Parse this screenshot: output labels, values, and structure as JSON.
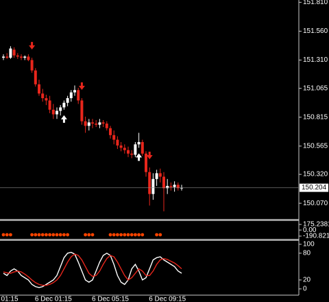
{
  "chart_data": [
    {
      "type": "candlestick",
      "categories": [
        "01:15",
        null,
        null,
        null,
        null,
        null,
        null,
        null,
        null,
        null,
        null,
        null,
        null,
        null,
        "6 Dec 01:15",
        null,
        null,
        null,
        null,
        null,
        null,
        null,
        null,
        null,
        null,
        null,
        null,
        null,
        null,
        null,
        "6 Dec 05:15",
        null,
        null,
        null,
        null,
        null,
        null,
        null,
        null,
        null,
        null,
        null,
        null,
        null,
        null,
        null,
        "6 Dec 09:15",
        null,
        null,
        null,
        null
      ],
      "open": [
        151.33,
        151.34,
        151.33,
        151.4,
        151.35,
        151.34,
        151.33,
        151.34,
        151.31,
        151.22,
        151.1,
        151.02,
        150.98,
        150.96,
        150.88,
        150.84,
        150.87,
        150.9,
        150.94,
        150.98,
        151.03,
        151.05,
        150.96,
        150.78,
        150.74,
        150.77,
        150.76,
        150.75,
        150.77,
        150.76,
        150.72,
        150.66,
        150.62,
        150.57,
        150.55,
        150.53,
        150.5,
        150.49,
        150.58,
        150.6,
        150.5,
        150.34,
        150.15,
        150.28,
        150.33,
        150.3,
        150.2,
        150.22,
        150.21,
        150.23,
        150.2
      ],
      "high": [
        151.36,
        151.37,
        151.43,
        151.42,
        151.37,
        151.36,
        151.35,
        151.36,
        151.33,
        151.24,
        151.14,
        151.06,
        151.01,
        151.0,
        150.93,
        150.9,
        150.92,
        150.96,
        151.0,
        151.05,
        151.09,
        151.07,
        150.98,
        150.82,
        150.8,
        150.8,
        150.79,
        150.8,
        150.79,
        150.78,
        150.74,
        150.7,
        150.65,
        150.6,
        150.58,
        150.56,
        150.53,
        150.6,
        150.68,
        150.62,
        150.52,
        150.38,
        150.33,
        150.36,
        150.37,
        150.34,
        150.28,
        150.25,
        150.26,
        150.25,
        150.23
      ],
      "low": [
        151.31,
        151.32,
        151.32,
        151.33,
        151.32,
        151.31,
        151.31,
        151.3,
        151.2,
        151.08,
        151.0,
        150.95,
        150.92,
        150.85,
        150.8,
        150.8,
        150.83,
        150.88,
        150.91,
        150.95,
        151.0,
        150.93,
        150.75,
        150.68,
        150.7,
        150.72,
        150.73,
        150.72,
        150.73,
        150.7,
        150.63,
        150.58,
        150.54,
        150.52,
        150.5,
        150.47,
        150.46,
        150.47,
        150.55,
        150.48,
        150.3,
        150.05,
        150.1,
        150.22,
        150.25,
        150.0,
        150.15,
        150.18,
        150.17,
        150.18,
        150.18
      ],
      "close": [
        151.34,
        151.33,
        151.41,
        151.35,
        151.34,
        151.33,
        151.34,
        151.31,
        151.22,
        151.1,
        151.02,
        150.98,
        150.96,
        150.88,
        150.84,
        150.87,
        150.9,
        150.94,
        150.98,
        151.03,
        151.05,
        150.96,
        150.78,
        150.74,
        150.77,
        150.76,
        150.75,
        150.77,
        150.76,
        150.72,
        150.66,
        150.62,
        150.57,
        150.55,
        150.53,
        150.5,
        150.49,
        150.58,
        150.6,
        150.5,
        150.34,
        150.15,
        150.28,
        150.33,
        150.3,
        150.2,
        150.22,
        150.21,
        150.23,
        150.2,
        150.204
      ],
      "up_color": "#ffffff",
      "down_color": "#e8261c",
      "sell_signals": [
        8,
        22,
        41
      ],
      "buy_signals": [
        17,
        38
      ],
      "last_price": 150.204,
      "ylim": [
        149.94,
        151.83
      ],
      "yticks": [
        {
          "value": 151.81,
          "label": "151.810"
        },
        {
          "value": 151.56,
          "label": "151.560"
        },
        {
          "value": 151.31,
          "label": "151.310"
        },
        151.065,
        150.815,
        150.565,
        {
          "value": 150.32,
          "label": "150.320"
        },
        {
          "value": 150.07,
          "label": "150.070"
        }
      ]
    },
    {
      "type": "dots",
      "color": "#ff4400",
      "dot_indices": [
        0,
        1,
        2,
        8,
        9,
        10,
        11,
        12,
        13,
        14,
        15,
        16,
        17,
        18,
        23,
        24,
        25,
        30,
        31,
        32,
        33,
        34,
        35,
        36,
        37,
        38,
        39,
        43,
        44
      ],
      "ylim": [
        -277,
        283
      ],
      "yticks": [
        175.2381,
        {
          "value": 0,
          "label": "0.00"
        },
        -190.821
      ]
    },
    {
      "type": "line",
      "series": [
        {
          "color": "#ffffff",
          "values": [
            35,
            30,
            40,
            45,
            40,
            30,
            25,
            20,
            10,
            5,
            3,
            5,
            10,
            15,
            20,
            30,
            50,
            70,
            80,
            82,
            78,
            60,
            40,
            20,
            15,
            20,
            40,
            60,
            75,
            80,
            75,
            55,
            30,
            15,
            10,
            20,
            45,
            55,
            40,
            20,
            25,
            45,
            65,
            70,
            72,
            65,
            60,
            55,
            50,
            40,
            35
          ]
        },
        {
          "color": "#e8261c",
          "values": [
            38,
            36,
            35,
            38,
            40,
            38,
            33,
            27,
            20,
            14,
            10,
            8,
            8,
            10,
            14,
            20,
            30,
            45,
            60,
            72,
            78,
            75,
            65,
            50,
            35,
            28,
            30,
            40,
            55,
            68,
            75,
            72,
            60,
            45,
            30,
            20,
            25,
            35,
            45,
            40,
            30,
            30,
            40,
            55,
            65,
            68,
            66,
            62,
            58,
            52,
            45
          ]
        }
      ],
      "ylim": [
        -14,
        106
      ],
      "yticks": [
        100,
        80,
        20,
        0
      ]
    }
  ]
}
